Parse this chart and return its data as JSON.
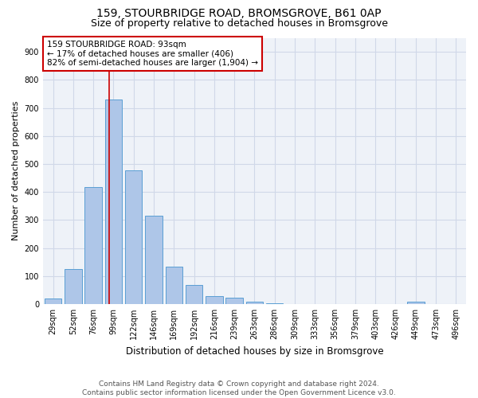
{
  "title": "159, STOURBRIDGE ROAD, BROMSGROVE, B61 0AP",
  "subtitle": "Size of property relative to detached houses in Bromsgrove",
  "xlabel": "Distribution of detached houses by size in Bromsgrove",
  "ylabel": "Number of detached properties",
  "categories": [
    "29sqm",
    "52sqm",
    "76sqm",
    "99sqm",
    "122sqm",
    "146sqm",
    "169sqm",
    "192sqm",
    "216sqm",
    "239sqm",
    "263sqm",
    "286sqm",
    "309sqm",
    "333sqm",
    "356sqm",
    "379sqm",
    "403sqm",
    "426sqm",
    "449sqm",
    "473sqm",
    "496sqm"
  ],
  "values": [
    20,
    125,
    418,
    730,
    478,
    315,
    133,
    67,
    28,
    22,
    8,
    2,
    0,
    0,
    0,
    0,
    0,
    0,
    8,
    0,
    0
  ],
  "bar_color": "#aec6e8",
  "bar_edge_color": "#5a9fd4",
  "grid_color": "#d0d8e8",
  "background_color": "#eef2f8",
  "annotation_line1": "159 STOURBRIDGE ROAD: 93sqm",
  "annotation_line2": "← 17% of detached houses are smaller (406)",
  "annotation_line3": "82% of semi-detached houses are larger (1,904) →",
  "annotation_box_color": "#cc0000",
  "vline_x_index": 2.78,
  "vline_color": "#cc0000",
  "ylim": [
    0,
    950
  ],
  "yticks": [
    0,
    100,
    200,
    300,
    400,
    500,
    600,
    700,
    800,
    900
  ],
  "footer": "Contains HM Land Registry data © Crown copyright and database right 2024.\nContains public sector information licensed under the Open Government Licence v3.0.",
  "title_fontsize": 10,
  "subtitle_fontsize": 9,
  "xlabel_fontsize": 8.5,
  "ylabel_fontsize": 8,
  "tick_fontsize": 7,
  "footer_fontsize": 6.5,
  "annotation_fontsize": 7.5
}
